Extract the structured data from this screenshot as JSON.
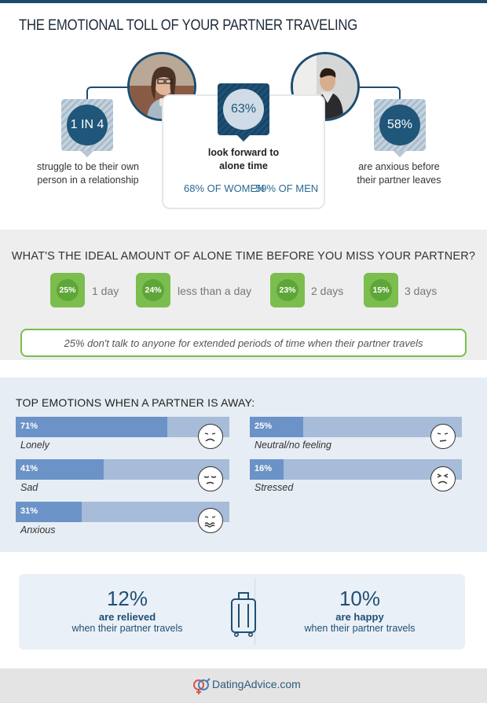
{
  "header": {
    "title": "THE EMOTIONAL TOLL OF YOUR PARTNER TRAVELING"
  },
  "stats": {
    "left": {
      "value": "1 IN 4",
      "text_line1": "struggle to be their own",
      "text_line2": "person in a relationship"
    },
    "center": {
      "value": "63%",
      "text_line1": "look forward to",
      "text_line2": "alone time",
      "women": "68% OF WOMEN",
      "men": "59% OF MEN"
    },
    "right": {
      "value": "58%",
      "text_line1": "are anxious before",
      "text_line2": "their partner leaves"
    }
  },
  "alone_time": {
    "question": "WHAT'S THE IDEAL AMOUNT OF ALONE TIME BEFORE YOU MISS YOUR PARTNER?",
    "options": [
      {
        "pct": "25%",
        "label": "1 day"
      },
      {
        "pct": "24%",
        "label": "less than a day"
      },
      {
        "pct": "23%",
        "label": "2 days"
      },
      {
        "pct": "15%",
        "label": "3 days"
      }
    ],
    "note": "25% don't talk to anyone for extended periods of time when their partner travels"
  },
  "emotions": {
    "title": "TOP EMOTIONS WHEN A PARTNER IS AWAY:",
    "items": [
      {
        "pct": "71%",
        "value": 71,
        "label": "Lonely"
      },
      {
        "pct": "41%",
        "value": 41,
        "label": "Sad"
      },
      {
        "pct": "31%",
        "value": 31,
        "label": "Anxious"
      },
      {
        "pct": "25%",
        "value": 25,
        "label": "Neutral/no feeling"
      },
      {
        "pct": "16%",
        "value": 16,
        "label": "Stressed"
      }
    ]
  },
  "relief": {
    "left": {
      "value": "12%",
      "line1": "are relieved",
      "line2": "when their partner travels"
    },
    "right": {
      "value": "10%",
      "line1": "are happy",
      "line2": "when their partner travels"
    }
  },
  "footer": {
    "brand": "DatingAdvice.com"
  },
  "colors": {
    "navy": "#1f5679",
    "green": "#7bbd4e",
    "bar": "#6b93c7",
    "bar_track": "#a6bcd9"
  }
}
